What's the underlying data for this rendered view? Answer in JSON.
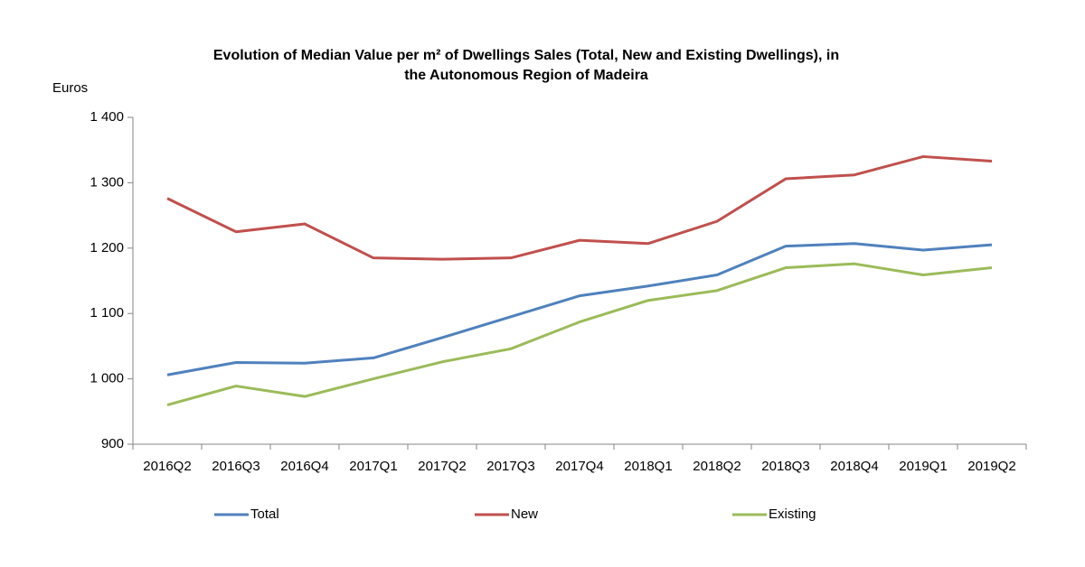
{
  "chart_data": {
    "type": "line",
    "title": [
      "Evolution of Median Value per m² of Dwellings Sales (Total, New and Existing Dwellings), in",
      "the Autonomous Region of Madeira"
    ],
    "y_label": "Euros",
    "categories": [
      "2016Q2",
      "2016Q3",
      "2016Q4",
      "2017Q1",
      "2017Q2",
      "2017Q3",
      "2017Q4",
      "2018Q1",
      "2018Q2",
      "2018Q3",
      "2018Q4",
      "2019Q1",
      "2019Q2"
    ],
    "series": [
      {
        "name": "Total",
        "color": "#4f81bd",
        "values": [
          1006,
          1025,
          1024,
          1032,
          1063,
          1095,
          1127,
          1142,
          1159,
          1203,
          1207,
          1197,
          1205
        ]
      },
      {
        "name": "New",
        "color": "#c0504d",
        "values": [
          1276,
          1225,
          1237,
          1185,
          1183,
          1185,
          1212,
          1207,
          1241,
          1306,
          1312,
          1340,
          1333
        ]
      },
      {
        "name": "Existing",
        "color": "#9bbb59",
        "values": [
          960,
          989,
          973,
          1000,
          1026,
          1046,
          1087,
          1120,
          1135,
          1170,
          1176,
          1159,
          1170
        ]
      }
    ],
    "ylim": [
      900,
      1400
    ],
    "yticks": [
      900,
      {
        "value": 1000,
        "label": "1 000"
      },
      {
        "value": 1100,
        "label": "1 100"
      },
      {
        "value": 1200,
        "label": "1 200"
      },
      {
        "value": 1300,
        "label": "1 300"
      },
      {
        "value": 1400,
        "label": "1 400"
      }
    ],
    "grid": false,
    "legend": "bottom"
  }
}
